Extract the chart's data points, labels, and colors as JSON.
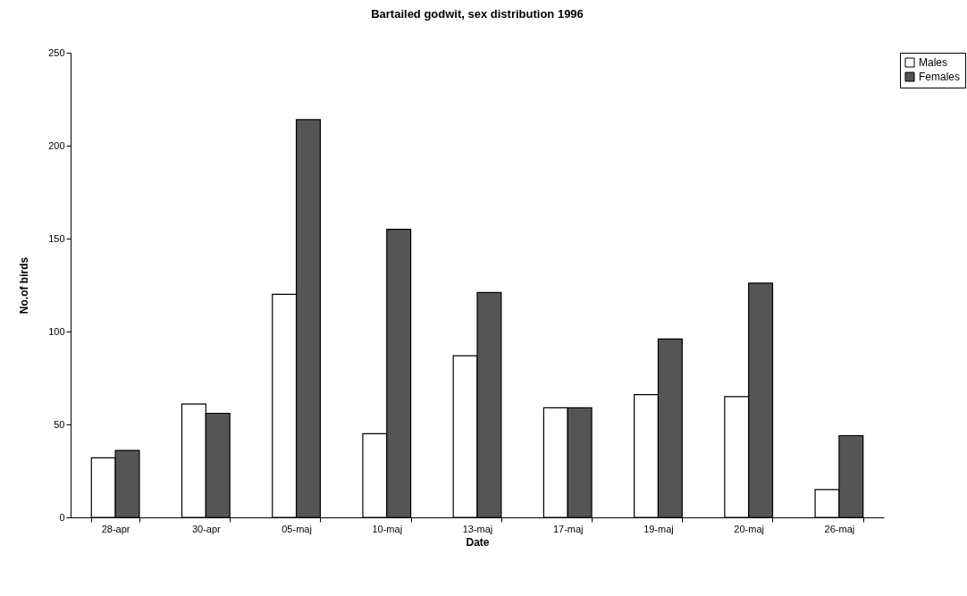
{
  "chart_data": {
    "type": "bar",
    "title": "Bartailed godwit, sex distribution 1996",
    "xlabel": "Date",
    "ylabel": "No.of birds",
    "categories": [
      "28-apr",
      "30-apr",
      "05-maj",
      "10-maj",
      "13-maj",
      "17-maj",
      "19-maj",
      "20-maj",
      "26-maj"
    ],
    "series": [
      {
        "name": "Males",
        "color": "#ffffff",
        "values": [
          32,
          61,
          120,
          45,
          87,
          59,
          66,
          65,
          15
        ]
      },
      {
        "name": "Females",
        "color": "#555555",
        "values": [
          36,
          56,
          214,
          155,
          121,
          59,
          96,
          126,
          44
        ]
      }
    ],
    "ylim": [
      0,
      250
    ],
    "yticks": [
      0,
      50,
      100,
      150,
      200,
      250
    ],
    "grid": false,
    "legend": "right"
  }
}
